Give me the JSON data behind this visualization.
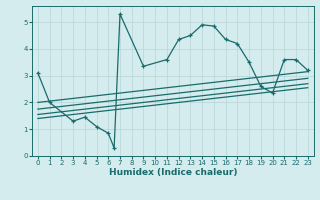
{
  "xlabel": "Humidex (Indice chaleur)",
  "bg_color": "#d4ecee",
  "line_color": "#1a6b6b",
  "grid_color": "#b8d4d8",
  "xlim": [
    -0.5,
    23.5
  ],
  "ylim": [
    0,
    5.6
  ],
  "xticks": [
    0,
    1,
    2,
    3,
    4,
    5,
    6,
    7,
    8,
    9,
    10,
    11,
    12,
    13,
    14,
    15,
    16,
    17,
    18,
    19,
    20,
    21,
    22,
    23
  ],
  "yticks": [
    0,
    1,
    2,
    3,
    4,
    5
  ],
  "main_x": [
    0,
    1,
    3,
    4,
    5,
    6,
    6.5,
    7,
    9,
    11,
    12,
    13,
    14,
    15,
    16,
    17,
    18,
    19,
    20,
    21,
    22,
    23
  ],
  "main_y": [
    3.1,
    2.0,
    1.3,
    1.45,
    1.1,
    0.85,
    0.3,
    5.3,
    3.35,
    3.6,
    4.35,
    4.5,
    4.9,
    4.85,
    4.35,
    4.2,
    3.5,
    2.6,
    2.35,
    3.6,
    3.6,
    3.2
  ],
  "diag_lines": [
    {
      "x": [
        0,
        23
      ],
      "y": [
        2.0,
        3.15
      ]
    },
    {
      "x": [
        0,
        23
      ],
      "y": [
        1.75,
        2.9
      ]
    },
    {
      "x": [
        0,
        23
      ],
      "y": [
        1.55,
        2.7
      ]
    },
    {
      "x": [
        0,
        23
      ],
      "y": [
        1.4,
        2.55
      ]
    }
  ]
}
